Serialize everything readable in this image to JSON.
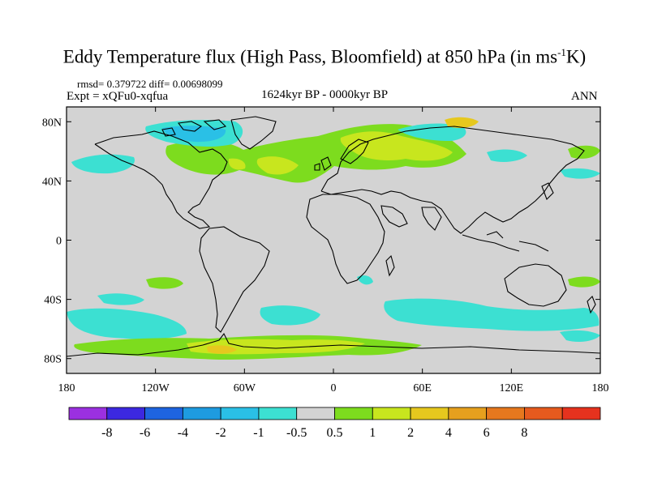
{
  "title": {
    "main": "Eddy Temperature flux (High Pass, Bloomfield) at 850 hPa (in ms",
    "sup": "-1",
    "end": "K)"
  },
  "stats_line": "rmsd= 0.379722 diff= 0.00698099",
  "experiment": "Expt = xQFu0-xqfua",
  "period": "1624kyr BP - 0000kyr BP",
  "season": "ANN",
  "map": {
    "lon_range": [
      -180,
      180
    ],
    "lat_range": [
      -90,
      90
    ],
    "background_color": "#d3d3d3",
    "x_ticks": [
      {
        "lon": -180,
        "label": "180"
      },
      {
        "lon": -120,
        "label": "120W"
      },
      {
        "lon": -60,
        "label": "60W"
      },
      {
        "lon": 0,
        "label": "0"
      },
      {
        "lon": 60,
        "label": "60E"
      },
      {
        "lon": 120,
        "label": "120E"
      },
      {
        "lon": 180,
        "label": "180"
      }
    ],
    "y_ticks": [
      {
        "lat": 80,
        "label": "80N"
      },
      {
        "lat": 40,
        "label": "40N"
      },
      {
        "lat": 0,
        "label": "0"
      },
      {
        "lat": -40,
        "label": "40S"
      },
      {
        "lat": -80,
        "label": "80S"
      }
    ]
  },
  "colorbar": {
    "colors": [
      "#9b30e0",
      "#3c28e0",
      "#1e64e0",
      "#1e9be0",
      "#2ac0e6",
      "#3ce0d2",
      "#d3d3d3",
      "#7ddc1e",
      "#c8e61e",
      "#e6c81e",
      "#e6a01e",
      "#e6781e",
      "#e65a1e",
      "#e6321e"
    ],
    "labels": [
      "-8",
      "-6",
      "-4",
      "-2",
      "-1",
      "-0.5",
      "0.5",
      "1",
      "2",
      "4",
      "6",
      "8"
    ]
  }
}
